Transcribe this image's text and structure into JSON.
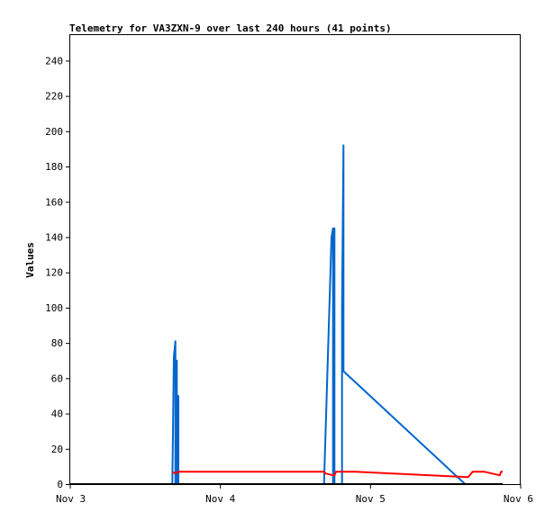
{
  "chart_data": {
    "type": "line",
    "title": "Telemetry for VA3ZXN-9 over last 240 hours (41 points)",
    "xlabel": "",
    "ylabel": "Values",
    "xlim": [
      "Nov 3",
      "Nov 6"
    ],
    "ylim": [
      0,
      255
    ],
    "x_ticks": [
      "Nov 3",
      "Nov 4",
      "Nov 5",
      "Nov 6"
    ],
    "y_ticks": [
      0,
      20,
      40,
      60,
      80,
      100,
      120,
      140,
      160,
      180,
      200,
      220,
      240
    ],
    "grid": false,
    "legend": "none",
    "x_unit": "days since Nov 3 00:00",
    "series": [
      {
        "name": "",
        "color": "#0066cc",
        "x": [
          0.68,
          0.69,
          0.7,
          0.7,
          0.71,
          0.71,
          0.72,
          0.72,
          1.69,
          1.74,
          1.75,
          1.75,
          1.76,
          1.76,
          1.77,
          1.77,
          1.81,
          1.81,
          1.82,
          1.82,
          2.63
        ],
        "y": [
          0,
          72,
          81,
          0,
          70,
          0,
          50,
          0,
          0,
          140,
          145,
          0,
          145,
          0,
          0,
          0,
          0,
          100,
          192,
          64,
          0
        ]
      },
      {
        "name": "",
        "color": "#ff0000",
        "x": [
          0.68,
          0.7,
          0.72,
          1.69,
          1.7,
          1.75,
          1.76,
          1.77,
          1.9,
          2.65,
          2.68,
          2.76,
          2.86,
          2.87,
          2.88
        ],
        "y": [
          7,
          6,
          7,
          7,
          6,
          5,
          5,
          7,
          7,
          4,
          7,
          7,
          5,
          7,
          7
        ]
      },
      {
        "name": "",
        "color": "#000000",
        "x": [
          0.0,
          2.88
        ],
        "y": [
          0,
          0
        ]
      }
    ]
  }
}
